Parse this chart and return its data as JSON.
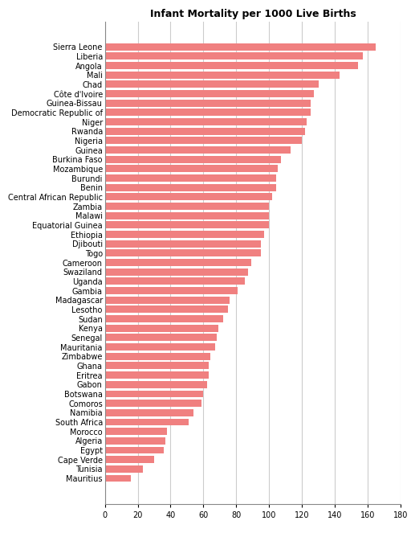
{
  "title": "Infant Mortality per 1000 Live Births",
  "countries": [
    "Sierra Leone",
    "Liberia",
    "Angola",
    "Mali",
    "Chad",
    "Côte d'Ivoire",
    "Guinea-Bissau",
    "Democratic Republic of",
    "Niger",
    "Rwanda",
    "Nigeria",
    "Guinea",
    "Burkina Faso",
    "Mozambique",
    "Burundi",
    "Benin",
    "Central African Republic",
    "Zambia",
    "Malawi",
    "Equatorial Guinea",
    "Ethiopia",
    "Djibouti",
    "Togo",
    "Cameroon",
    "Swaziland",
    "Uganda",
    "Gambia",
    "Madagascar",
    "Lesotho",
    "Sudan",
    "Kenya",
    "Senegal",
    "Mauritania",
    "Zimbabwe",
    "Ghana",
    "Eritrea",
    "Gabon",
    "Botswana",
    "Comoros",
    "Namibia",
    "South Africa",
    "Morocco",
    "Algeria",
    "Egypt",
    "Cape Verde",
    "Tunisia",
    "Mauritius"
  ],
  "values": [
    165,
    157,
    154,
    143,
    130,
    127,
    125,
    125,
    123,
    122,
    120,
    113,
    107,
    105,
    104,
    104,
    102,
    100,
    100,
    100,
    97,
    95,
    95,
    89,
    87,
    85,
    81,
    76,
    75,
    72,
    69,
    68,
    67,
    64,
    63,
    63,
    62,
    60,
    59,
    54,
    51,
    38,
    37,
    36,
    30,
    23,
    16
  ],
  "bar_color": "#f08080",
  "background_color": "#ffffff",
  "grid_color": "#cccccc",
  "xlim": [
    0,
    180
  ],
  "xticks": [
    0,
    20,
    40,
    60,
    80,
    100,
    120,
    140,
    160,
    180
  ],
  "title_fontsize": 9,
  "label_fontsize": 7,
  "tick_fontsize": 7,
  "bar_height": 0.75
}
